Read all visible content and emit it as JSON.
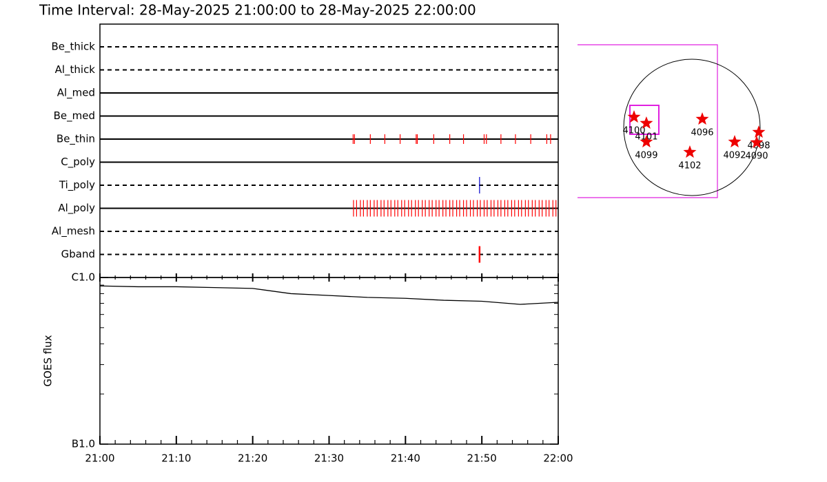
{
  "title": "Time Interval: 28-May-2025 21:00:00 to 28-May-2025 22:00:00",
  "timeline": {
    "xlim": [
      0,
      60
    ],
    "filters": [
      {
        "name": "Be_thick",
        "style": "dashed",
        "color": "#ff0000",
        "events": []
      },
      {
        "name": "Al_thick",
        "style": "dashed",
        "color": "#ff0000",
        "events": []
      },
      {
        "name": "Al_med",
        "style": "solid",
        "color": "#ff0000",
        "events": []
      },
      {
        "name": "Be_med",
        "style": "solid",
        "color": "#ff0000",
        "events": []
      },
      {
        "name": "Be_thin",
        "style": "solid",
        "color": "#ff0000",
        "events": [
          33.15,
          33.33,
          35.4,
          37.3,
          39.3,
          41.4,
          41.55,
          43.7,
          45.8,
          47.6,
          50.3,
          50.6,
          52.5,
          54.4,
          56.4,
          58.5,
          59.0
        ]
      },
      {
        "name": "C_poly",
        "style": "solid",
        "color": "#ff0000",
        "events": []
      },
      {
        "name": "Ti_poly",
        "style": "dashed",
        "color": "#0000cc",
        "events": [
          49.7
        ]
      },
      {
        "name": "Al_poly",
        "style": "solid",
        "color": "#ff0000",
        "events": [
          33.2,
          33.6,
          34.1,
          34.5,
          35.0,
          35.4,
          35.9,
          36.3,
          36.8,
          37.2,
          37.7,
          38.1,
          38.6,
          39.0,
          39.5,
          39.9,
          40.4,
          40.8,
          41.3,
          41.7,
          42.2,
          42.6,
          43.1,
          43.5,
          44.0,
          44.4,
          44.9,
          45.3,
          45.8,
          46.2,
          46.7,
          47.1,
          47.6,
          48.0,
          48.5,
          48.9,
          49.4,
          49.8,
          50.3,
          50.7,
          51.2,
          51.6,
          52.1,
          52.5,
          53.0,
          53.4,
          53.9,
          54.3,
          54.8,
          55.2,
          55.7,
          56.1,
          56.6,
          57.0,
          57.5,
          57.9,
          58.4,
          58.8,
          59.3,
          59.7
        ]
      },
      {
        "name": "Al_mesh",
        "style": "dashed",
        "color": "#ff0000",
        "events": []
      },
      {
        "name": "Gband",
        "style": "dashed",
        "color": "#ff0000",
        "events": [
          49.7
        ]
      }
    ]
  },
  "chart_data": {
    "type": "line",
    "ylabel": "GOES flux",
    "log": true,
    "x": [
      0,
      5,
      10,
      15,
      20,
      25,
      30,
      35,
      40,
      45,
      50,
      55,
      60
    ],
    "values": [
      8.9e-07,
      8.8e-07,
      8.8e-07,
      8.7e-07,
      8.6e-07,
      8e-07,
      7.8e-07,
      7.6e-07,
      7.5e-07,
      7.3e-07,
      7.2e-07,
      6.9e-07,
      7.1e-07
    ],
    "color": "#000000",
    "xlim": [
      0,
      60
    ],
    "xticks": [
      {
        "value": 0,
        "label": "21:00"
      },
      {
        "value": 10,
        "label": "21:10"
      },
      {
        "value": 20,
        "label": "21:20"
      },
      {
        "value": 30,
        "label": "21:30"
      },
      {
        "value": 40,
        "label": "21:40"
      },
      {
        "value": 50,
        "label": "21:50"
      },
      {
        "value": 60,
        "label": "22:00"
      }
    ],
    "minor_xticks": [
      2,
      4,
      6,
      8,
      12,
      14,
      16,
      18,
      22,
      24,
      26,
      28,
      32,
      34,
      36,
      38,
      42,
      44,
      46,
      48,
      52,
      54,
      56,
      58
    ],
    "ylim": [
      1e-07,
      1e-06
    ],
    "yticks": [
      {
        "value": 1e-06,
        "label": "C1.0"
      },
      {
        "value": 1e-07,
        "label": "B1.0"
      }
    ],
    "minor_yticks": [
      2e-07,
      3e-07,
      4e-07,
      5e-07,
      6e-07,
      7e-07,
      8e-07,
      9e-07
    ]
  },
  "sun_map": {
    "radius": 950,
    "regions": [
      {
        "label": "4100",
        "x": -806,
        "y": 144
      },
      {
        "label": "4101",
        "x": -634,
        "y": 58
      },
      {
        "label": "4096",
        "x": 144,
        "y": 115
      },
      {
        "label": "4099",
        "x": -634,
        "y": -202
      },
      {
        "label": "4102",
        "x": -29,
        "y": -346
      },
      {
        "label": "4092",
        "x": 595,
        "y": -202
      },
      {
        "label": "4098",
        "x": 931,
        "y": -67
      },
      {
        "label": "4090",
        "x": 902,
        "y": -211
      }
    ]
  }
}
